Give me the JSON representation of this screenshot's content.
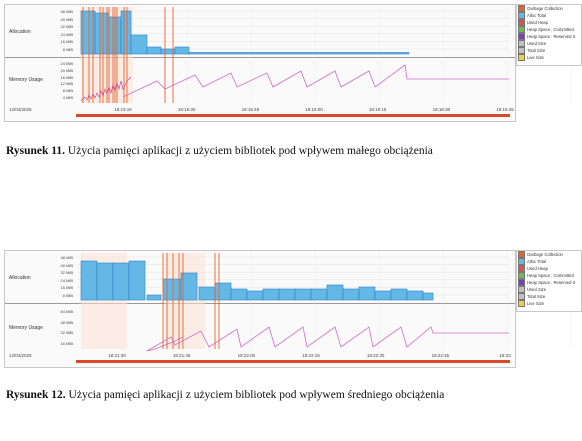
{
  "figures": [
    {
      "track_labels": {
        "allocation": "Allocation",
        "memory": "Memory Usage"
      },
      "alloc_ticks": [
        "48 MiB",
        "40 MiB",
        "32 MiB",
        "24 MiB",
        "16 MiB",
        "8 MiB"
      ],
      "mem_ticks": [
        "24 MiB",
        "20 MiB",
        "16 MiB",
        "12 MiB",
        "8 MiB",
        "4 MiB"
      ],
      "date": "12/04/2025",
      "time_ticks": [
        "18:15:15",
        "18:15:30",
        "18:15:45",
        "18:16:00",
        "18:16:15",
        "18:16:30",
        "18:16:45"
      ],
      "legend": [
        "Garbage Collection",
        "Alloc Total",
        "Used Heap",
        "Heap Space : Committed",
        "Heap Space : Reserved S",
        "Used Size",
        "Total Size",
        "Live Size"
      ],
      "caption_label": "Rysunek 11.",
      "caption_text": "Użycia pamięci aplikacji z użyciem bibliotek pod wpływem małego obciążenia"
    },
    {
      "track_labels": {
        "allocation": "Allocation",
        "memory": "Memory Usage"
      },
      "alloc_ticks": [
        "48 MiB",
        "40 MiB",
        "32 MiB",
        "24 MiB",
        "16 MiB",
        "8 MiB"
      ],
      "mem_ticks": [
        "64 MiB",
        "48 MiB",
        "32 MiB",
        "16 MiB"
      ],
      "date": "12/04/2025",
      "time_ticks": [
        "18:21:30",
        "18:21:45",
        "18:22:00",
        "18:22:15",
        "18:22:30",
        "18:22:45",
        "18:23"
      ],
      "legend": [
        "Garbage Collection",
        "Alloc Total",
        "Used Heap",
        "Heap Space : Committed",
        "Heap Space : Reserved S",
        "Used Size",
        "Total Size",
        "Live Size"
      ],
      "caption_label": "Rysunek 12.",
      "caption_text": "Użycia pamięci aplikacji z użyciem bibliotek pod wpływem średniego obciążenia"
    }
  ],
  "colors": {
    "bar_fill": "#63b8e6",
    "bar_fill_dark": "#2f7fc9",
    "gc_line": "#e8622a",
    "heap_line": "#d06ac8",
    "axis_bar": "#d94a2a"
  },
  "legend_colors": [
    "#e8622a",
    "#63b8e6",
    "#d9534f",
    "#6abf4b",
    "#7b3fbf",
    "#c0c0c0",
    "#c0c0c0",
    "#f0d040"
  ]
}
